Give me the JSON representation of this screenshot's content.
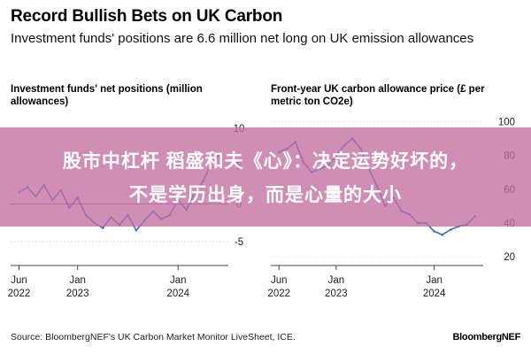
{
  "header": {
    "title": "Record Bullish Bets on UK Carbon",
    "subtitle": "Investment funds' positions are 6.6 million net long on UK emission allowances"
  },
  "banner": {
    "line1": "股市中杠杆 稻盛和夫《心》：决定运势好坏的，",
    "line2": "不是学历出身，而是心量的大小"
  },
  "footer": {
    "source": "Source: BloombergNEF's UK Carbon Market Monitor LiveSheet, ICE.",
    "brand": "BloombergNEF"
  },
  "chart_data": [
    {
      "type": "line",
      "title": "Investment funds' net positions (million allowances)",
      "color": "#2f6fc0",
      "xlim": [
        "2022-05",
        "2024-07"
      ],
      "ylim": [
        -7,
        12
      ],
      "yticks": [
        10,
        5,
        0,
        -5
      ],
      "ytick_labels": [
        "10",
        "5",
        "0",
        "-5"
      ],
      "xticks": [
        {
          "date": "2022-06",
          "label": [
            "Jun",
            "2022"
          ]
        },
        {
          "date": "2023-01",
          "label": [
            "Jan",
            "2023"
          ]
        },
        {
          "date": "2024-01",
          "label": [
            "Jan",
            "2024"
          ]
        }
      ],
      "grid": true,
      "x": [
        "2022-06",
        "2022-07",
        "2022-08",
        "2022-09",
        "2022-10",
        "2022-11",
        "2022-12",
        "2023-01",
        "2023-02",
        "2023-03",
        "2023-04",
        "2023-05",
        "2023-06",
        "2023-07",
        "2023-08",
        "2023-09",
        "2023-10",
        "2023-11",
        "2023-12",
        "2024-01",
        "2024-02",
        "2024-03",
        "2024-04",
        "2024-05",
        "2024-06"
      ],
      "y": [
        1.5,
        2.2,
        1.0,
        2.5,
        0.5,
        1.8,
        -0.5,
        0.8,
        -1.5,
        -2.5,
        -3.2,
        -1.8,
        -2.8,
        -1.5,
        -3.5,
        -2.2,
        -1.0,
        -2.0,
        -1.5,
        0.5,
        -0.8,
        1.5,
        3.0,
        5.5,
        6.6
      ]
    },
    {
      "type": "line",
      "title": "Front-year UK carbon allowance price (£ per metric ton CO2e)",
      "color": "#2f6fc0",
      "xlim": [
        "2022-05",
        "2024-07"
      ],
      "ylim": [
        20,
        105
      ],
      "yticks": [
        100,
        80,
        60,
        40,
        20
      ],
      "ytick_labels": [
        "100",
        "80",
        "60",
        "40",
        "20"
      ],
      "xticks": [
        {
          "date": "2022-06",
          "label": [
            "Jun",
            "2022"
          ]
        },
        {
          "date": "2023-01",
          "label": [
            "Jan",
            "2023"
          ]
        },
        {
          "date": "2024-01",
          "label": [
            "Jan",
            "2024"
          ]
        }
      ],
      "grid": true,
      "x": [
        "2022-06",
        "2022-07",
        "2022-08",
        "2022-09",
        "2022-10",
        "2022-11",
        "2022-12",
        "2023-01",
        "2023-02",
        "2023-03",
        "2023-04",
        "2023-05",
        "2023-06",
        "2023-07",
        "2023-08",
        "2023-09",
        "2023-10",
        "2023-11",
        "2023-12",
        "2024-01",
        "2024-02",
        "2024-03",
        "2024-04",
        "2024-05",
        "2024-06"
      ],
      "y": [
        82,
        84,
        88,
        76,
        70,
        72,
        74,
        80,
        86,
        90,
        84,
        72,
        62,
        50,
        55,
        47,
        45,
        40,
        40,
        35,
        33,
        36,
        38,
        39,
        44
      ]
    }
  ]
}
